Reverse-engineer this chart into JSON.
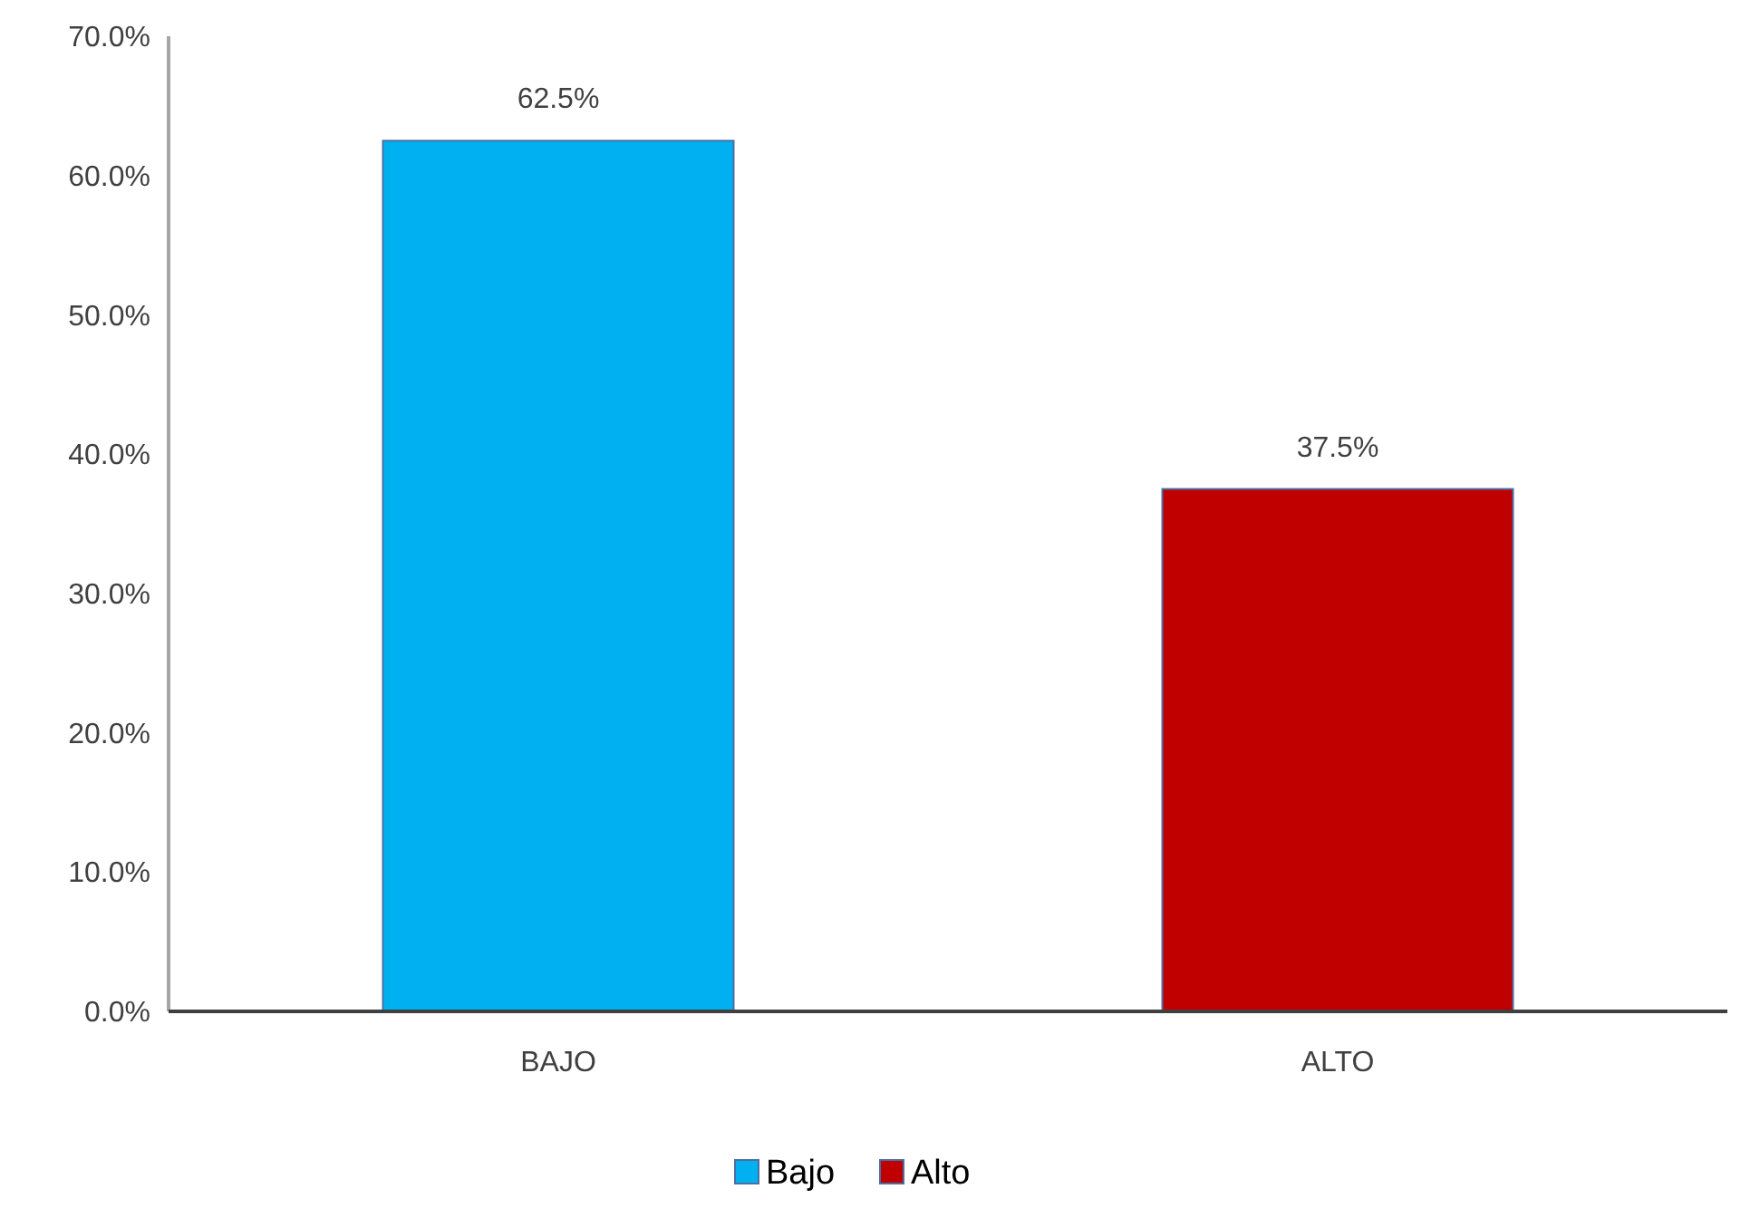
{
  "chart_data": {
    "type": "bar",
    "categories": [
      "BAJO",
      "ALTO"
    ],
    "series": [
      {
        "name": "Bajo",
        "color": "#00b0f0",
        "values": [
          62.5,
          null
        ],
        "value_labels": [
          "62.5%",
          null
        ]
      },
      {
        "name": "Alto",
        "color": "#c00000",
        "values": [
          null,
          37.5
        ],
        "value_labels": [
          null,
          "37.5%"
        ]
      }
    ],
    "ylim": [
      0,
      70
    ],
    "yticks": [
      {
        "value": 0,
        "label": "0.0%"
      },
      {
        "value": 10,
        "label": "10.0%"
      },
      {
        "value": 20,
        "label": "20.0%"
      },
      {
        "value": 30,
        "label": "30.0%"
      },
      {
        "value": 40,
        "label": "40.0%"
      },
      {
        "value": 50,
        "label": "50.0%"
      },
      {
        "value": 60,
        "label": "60.0%"
      },
      {
        "value": 70,
        "label": "70.0%"
      }
    ],
    "grid": false,
    "legend": "bottom"
  }
}
